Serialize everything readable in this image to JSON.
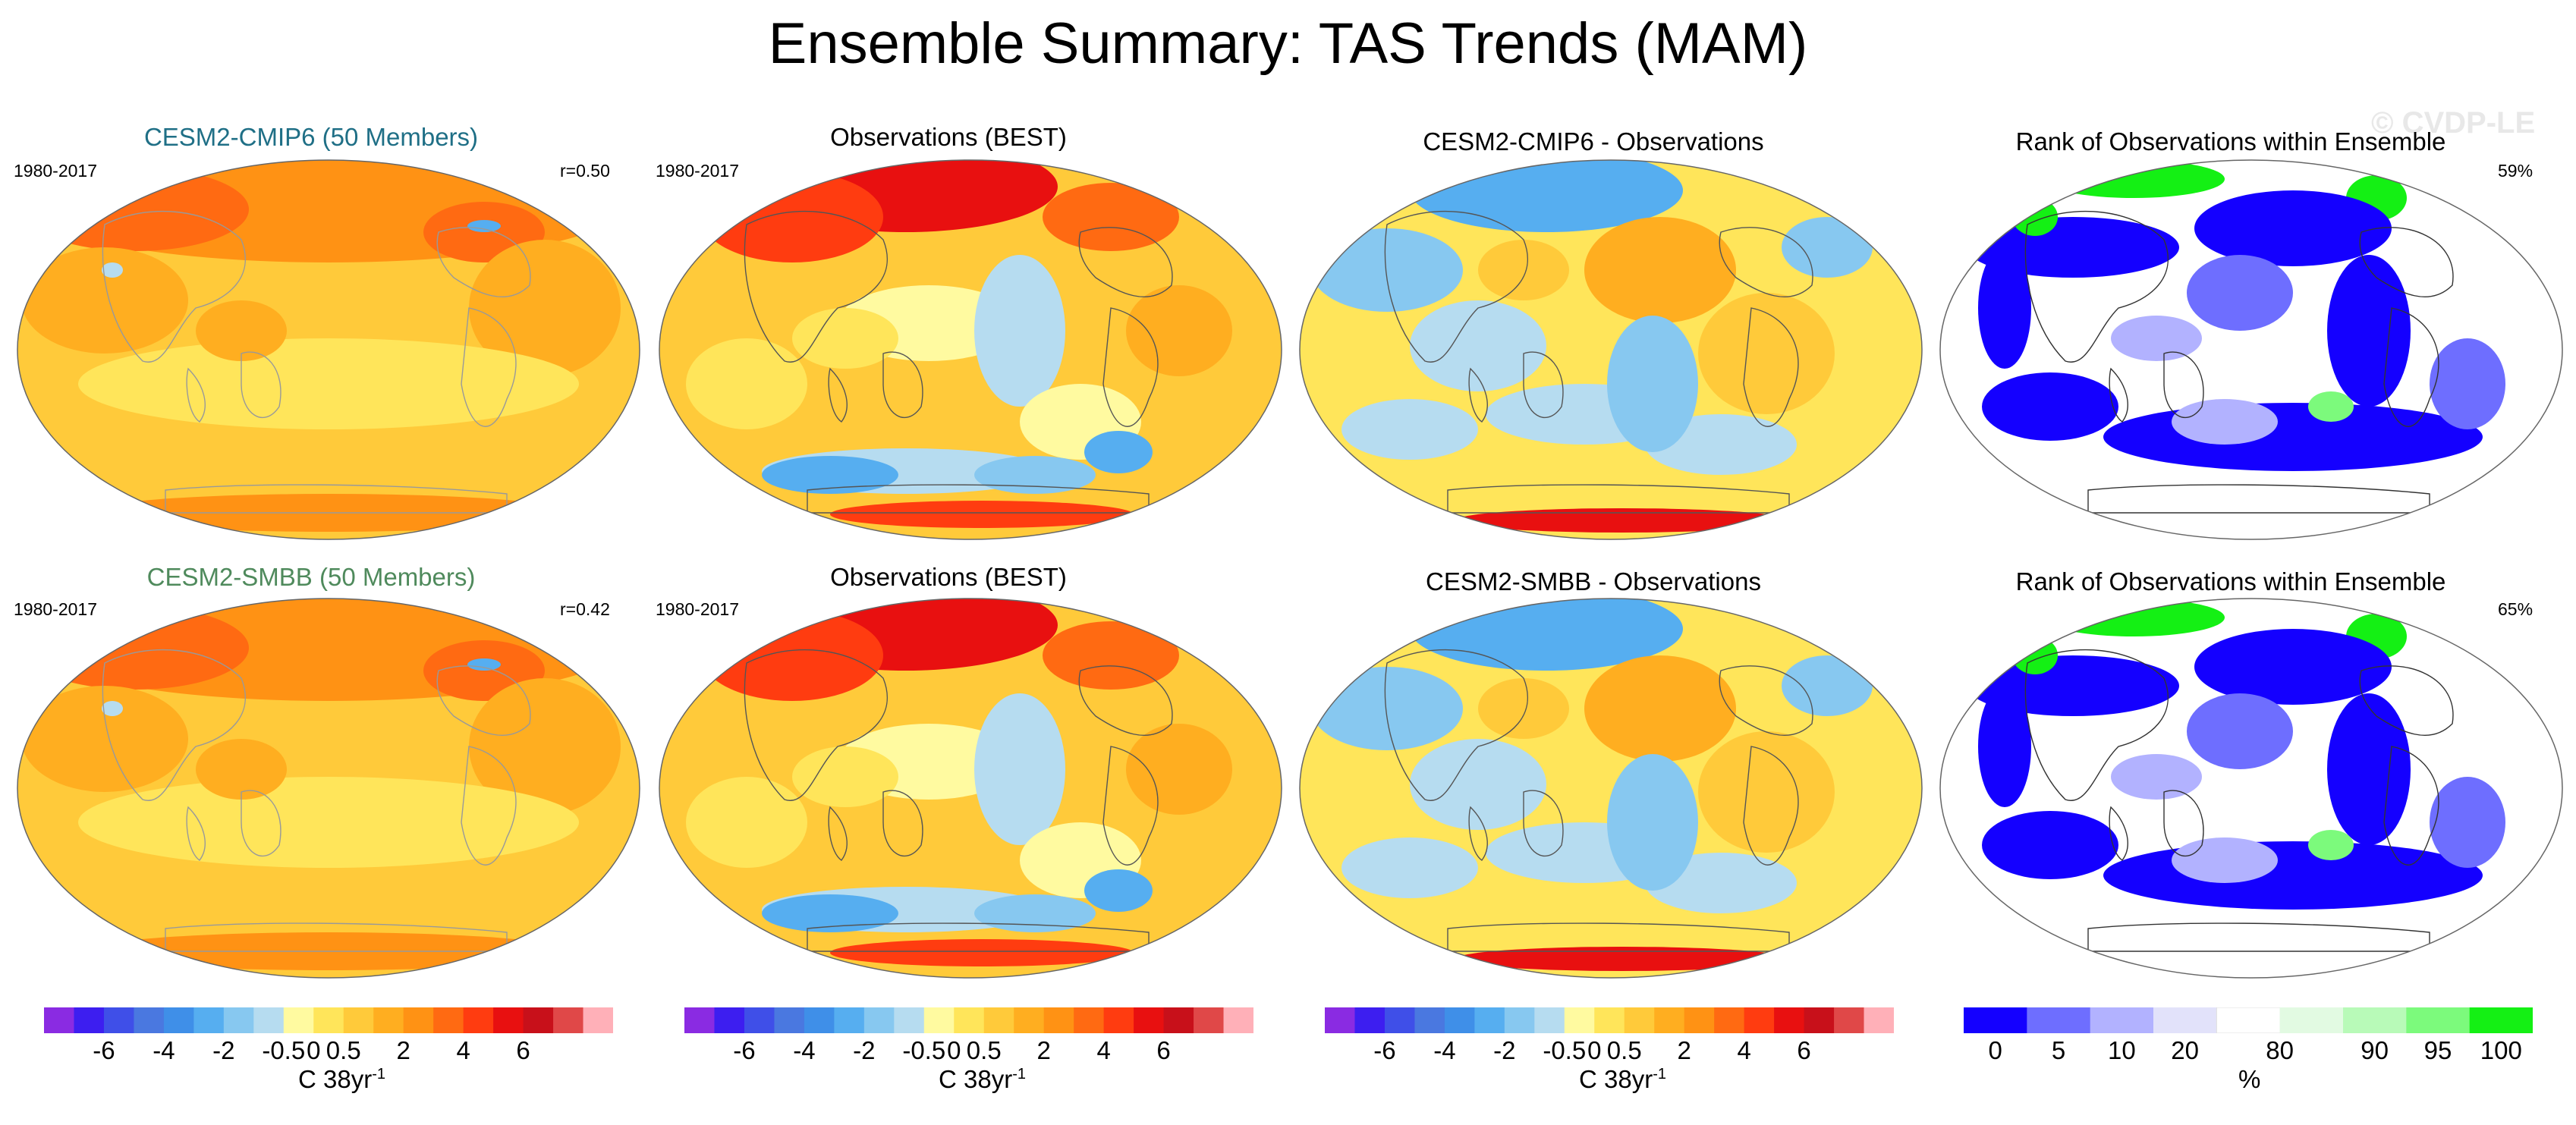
{
  "title": "Ensemble Summary: TAS Trends (MAM)",
  "watermark": "© CVDP-LE",
  "rows": [
    {
      "period": "1980-2017",
      "panels": [
        {
          "title": "CESM2-CMIP6 (50 Members)",
          "title_color": "#1f6f86",
          "stat": "r=0.50",
          "palette": "warm",
          "coast": "#999999"
        },
        {
          "title": "Observations (BEST)",
          "title_color": "#000000",
          "stat": "",
          "palette": "obs",
          "coast": "#555555"
        },
        {
          "title": "CESM2-CMIP6 - Observations",
          "title_color": "#000000",
          "stat": "",
          "palette": "diff",
          "coast": "#555555"
        },
        {
          "title": "Rank of Observations within Ensemble",
          "title_color": "#000000",
          "stat": "59%",
          "palette": "rank",
          "coast": "#333333"
        }
      ]
    },
    {
      "period": "1980-2017",
      "panels": [
        {
          "title": "CESM2-SMBB (50 Members)",
          "title_color": "#4f8a5c",
          "stat": "r=0.42",
          "palette": "warm",
          "coast": "#999999"
        },
        {
          "title": "Observations (BEST)",
          "title_color": "#000000",
          "stat": "",
          "palette": "obs",
          "coast": "#555555"
        },
        {
          "title": "CESM2-SMBB - Observations",
          "title_color": "#000000",
          "stat": "",
          "palette": "diff",
          "coast": "#555555"
        },
        {
          "title": "Rank of Observations within Ensemble",
          "title_color": "#000000",
          "stat": "65%",
          "palette": "rank",
          "coast": "#333333"
        }
      ]
    }
  ],
  "chart_data": {
    "type": "heatmap",
    "title": "Ensemble Summary: TAS Trends (MAM)",
    "projection": "global map (Robinson-like ellipse)",
    "period": "1980-2017",
    "series": [
      {
        "name": "CESM2-CMIP6 (50 Members)",
        "row": 1,
        "pattern_correlation": "r=0.50",
        "units": "C 38yr-1"
      },
      {
        "name": "Observations (BEST)",
        "row": 1,
        "units": "C 38yr-1"
      },
      {
        "name": "CESM2-CMIP6 - Observations",
        "row": 1,
        "units": "C 38yr-1"
      },
      {
        "name": "Rank of Observations within Ensemble",
        "row": 1,
        "percent": "59%",
        "units": "%"
      },
      {
        "name": "CESM2-SMBB (50 Members)",
        "row": 2,
        "pattern_correlation": "r=0.42",
        "units": "C 38yr-1"
      },
      {
        "name": "Observations (BEST)",
        "row": 2,
        "units": "C 38yr-1"
      },
      {
        "name": "CESM2-SMBB - Observations",
        "row": 2,
        "units": "C 38yr-1"
      },
      {
        "name": "Rank of Observations within Ensemble",
        "row": 2,
        "percent": "65%",
        "units": "%"
      }
    ],
    "temperature_colorbar": {
      "colors": [
        "#8a2be2",
        "#3d1ef0",
        "#3f4fe8",
        "#4a78e0",
        "#3f8fe8",
        "#56aef0",
        "#87c8f0",
        "#b6dcf0",
        "#fffaa0",
        "#ffe55a",
        "#ffca3a",
        "#ffae20",
        "#ff9214",
        "#ff6a12",
        "#ff3c10",
        "#e81010",
        "#c8101a",
        "#e04848",
        "#ffb0b8"
      ],
      "tick_labels": [
        "-6",
        "-4",
        "-2",
        "-0.5",
        "0",
        "0.5",
        "2",
        "4",
        "6"
      ],
      "tick_boundary_index": [
        2,
        4,
        6,
        8,
        9,
        10,
        12,
        14,
        16
      ],
      "unit_label": "C 38yr",
      "unit_exponent": "-1"
    },
    "rank_colorbar": {
      "colors": [
        "#1400ff",
        "#6e6eff",
        "#b2b2ff",
        "#e2e2fa",
        "#ffffff",
        "#e2fae2",
        "#b8fab8",
        "#7cfa7c",
        "#14f014"
      ],
      "tick_labels": [
        "0",
        "5",
        "10",
        "20",
        "80",
        "90",
        "95",
        "100"
      ],
      "unit_label": "%"
    }
  }
}
